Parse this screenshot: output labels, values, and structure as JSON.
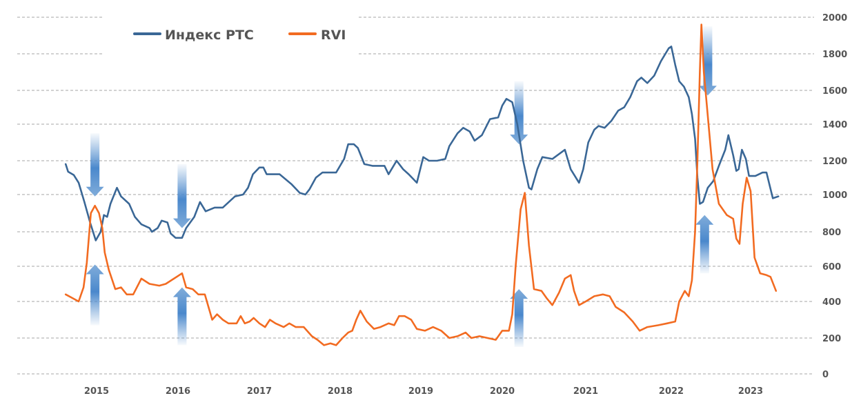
{
  "chart_data": {
    "type": "line",
    "title": "",
    "xlabel": "",
    "ylabel": "",
    "ylim": [
      0,
      2000
    ],
    "xlim": [
      2014.6,
      2023.6
    ],
    "grid": true,
    "y_axis_position": "right",
    "legend_position": "top-left",
    "y_ticks": [
      "2000",
      "1800",
      "1600",
      "1400",
      "1200",
      "1000",
      "800",
      "600",
      "400",
      "200",
      "0"
    ],
    "x_ticks": [
      "2015",
      "2016",
      "2017",
      "2018",
      "2019",
      "2020",
      "2021",
      "2022",
      "2023"
    ],
    "series": [
      {
        "name": "Индекс РТС",
        "color": "#3a6796",
        "points": [
          [
            2014.62,
            1180
          ],
          [
            2014.65,
            1135
          ],
          [
            2014.72,
            1115
          ],
          [
            2014.78,
            1070
          ],
          [
            2014.85,
            960
          ],
          [
            2014.92,
            850
          ],
          [
            2014.99,
            750
          ],
          [
            2015.05,
            800
          ],
          [
            2015.09,
            890
          ],
          [
            2015.13,
            880
          ],
          [
            2015.17,
            950
          ],
          [
            2015.25,
            1040
          ],
          [
            2015.3,
            990
          ],
          [
            2015.4,
            950
          ],
          [
            2015.47,
            880
          ],
          [
            2015.55,
            840
          ],
          [
            2015.65,
            820
          ],
          [
            2015.68,
            800
          ],
          [
            2015.75,
            820
          ],
          [
            2015.8,
            860
          ],
          [
            2015.87,
            850
          ],
          [
            2015.91,
            790
          ],
          [
            2015.97,
            765
          ],
          [
            2016.05,
            765
          ],
          [
            2016.1,
            820
          ],
          [
            2016.2,
            880
          ],
          [
            2016.27,
            960
          ],
          [
            2016.34,
            910
          ],
          [
            2016.45,
            930
          ],
          [
            2016.55,
            930
          ],
          [
            2016.65,
            970
          ],
          [
            2016.7,
            990
          ],
          [
            2016.8,
            1000
          ],
          [
            2016.86,
            1040
          ],
          [
            2016.92,
            1120
          ],
          [
            2017.0,
            1160
          ],
          [
            2017.05,
            1160
          ],
          [
            2017.09,
            1120
          ],
          [
            2017.25,
            1120
          ],
          [
            2017.4,
            1060
          ],
          [
            2017.5,
            1010
          ],
          [
            2017.57,
            1000
          ],
          [
            2017.62,
            1030
          ],
          [
            2017.7,
            1100
          ],
          [
            2017.78,
            1130
          ],
          [
            2017.85,
            1130
          ],
          [
            2017.95,
            1130
          ],
          [
            2018.05,
            1210
          ],
          [
            2018.1,
            1290
          ],
          [
            2018.17,
            1290
          ],
          [
            2018.22,
            1270
          ],
          [
            2018.3,
            1180
          ],
          [
            2018.4,
            1170
          ],
          [
            2018.45,
            1170
          ],
          [
            2018.55,
            1170
          ],
          [
            2018.6,
            1120
          ],
          [
            2018.7,
            1200
          ],
          [
            2018.78,
            1150
          ],
          [
            2018.85,
            1120
          ],
          [
            2018.95,
            1070
          ],
          [
            2019.03,
            1220
          ],
          [
            2019.1,
            1200
          ],
          [
            2019.2,
            1200
          ],
          [
            2019.3,
            1210
          ],
          [
            2019.35,
            1280
          ],
          [
            2019.45,
            1350
          ],
          [
            2019.52,
            1380
          ],
          [
            2019.6,
            1360
          ],
          [
            2019.66,
            1310
          ],
          [
            2019.75,
            1340
          ],
          [
            2019.85,
            1430
          ],
          [
            2019.95,
            1440
          ],
          [
            2020.0,
            1510
          ],
          [
            2020.05,
            1550
          ],
          [
            2020.12,
            1530
          ],
          [
            2020.18,
            1400
          ],
          [
            2020.25,
            1200
          ],
          [
            2020.32,
            1040
          ],
          [
            2020.35,
            1030
          ],
          [
            2020.42,
            1150
          ],
          [
            2020.48,
            1220
          ],
          [
            2020.6,
            1210
          ],
          [
            2020.75,
            1260
          ],
          [
            2020.82,
            1150
          ],
          [
            2020.92,
            1070
          ],
          [
            2020.97,
            1150
          ],
          [
            2021.03,
            1300
          ],
          [
            2021.1,
            1370
          ],
          [
            2021.15,
            1390
          ],
          [
            2021.22,
            1380
          ],
          [
            2021.3,
            1420
          ],
          [
            2021.38,
            1480
          ],
          [
            2021.45,
            1500
          ],
          [
            2021.52,
            1560
          ],
          [
            2021.6,
            1650
          ],
          [
            2021.65,
            1670
          ],
          [
            2021.72,
            1640
          ],
          [
            2021.8,
            1680
          ],
          [
            2021.88,
            1760
          ],
          [
            2021.97,
            1830
          ],
          [
            2022.0,
            1840
          ],
          [
            2022.05,
            1740
          ],
          [
            2022.1,
            1650
          ],
          [
            2022.16,
            1620
          ],
          [
            2022.22,
            1560
          ],
          [
            2022.26,
            1460
          ],
          [
            2022.3,
            1320
          ],
          [
            2022.33,
            1100
          ],
          [
            2022.36,
            950
          ],
          [
            2022.4,
            960
          ],
          [
            2022.46,
            1040
          ],
          [
            2022.53,
            1080
          ],
          [
            2022.6,
            1170
          ],
          [
            2022.68,
            1260
          ],
          [
            2022.72,
            1340
          ],
          [
            2022.78,
            1230
          ],
          [
            2022.82,
            1140
          ],
          [
            2022.85,
            1150
          ],
          [
            2022.89,
            1260
          ],
          [
            2022.94,
            1210
          ],
          [
            2022.98,
            1110
          ],
          [
            2023.06,
            1110
          ],
          [
            2023.15,
            1130
          ],
          [
            2023.2,
            1130
          ],
          [
            2023.28,
            980
          ],
          [
            2023.35,
            990
          ]
        ]
      },
      {
        "name": "RVI",
        "color": "#f26b21",
        "points": [
          [
            2014.62,
            440
          ],
          [
            2014.7,
            420
          ],
          [
            2014.78,
            400
          ],
          [
            2014.84,
            480
          ],
          [
            2014.88,
            620
          ],
          [
            2014.93,
            900
          ],
          [
            2014.98,
            940
          ],
          [
            2015.03,
            900
          ],
          [
            2015.07,
            820
          ],
          [
            2015.1,
            680
          ],
          [
            2015.15,
            580
          ],
          [
            2015.23,
            470
          ],
          [
            2015.3,
            480
          ],
          [
            2015.37,
            440
          ],
          [
            2015.45,
            440
          ],
          [
            2015.55,
            530
          ],
          [
            2015.65,
            500
          ],
          [
            2015.77,
            490
          ],
          [
            2015.85,
            500
          ],
          [
            2015.95,
            530
          ],
          [
            2016.05,
            560
          ],
          [
            2016.1,
            480
          ],
          [
            2016.18,
            470
          ],
          [
            2016.25,
            440
          ],
          [
            2016.33,
            440
          ],
          [
            2016.42,
            300
          ],
          [
            2016.48,
            330
          ],
          [
            2016.55,
            300
          ],
          [
            2016.62,
            280
          ],
          [
            2016.72,
            280
          ],
          [
            2016.77,
            320
          ],
          [
            2016.82,
            280
          ],
          [
            2016.88,
            290
          ],
          [
            2016.93,
            310
          ],
          [
            2017.0,
            280
          ],
          [
            2017.07,
            260
          ],
          [
            2017.13,
            300
          ],
          [
            2017.2,
            280
          ],
          [
            2017.3,
            260
          ],
          [
            2017.37,
            280
          ],
          [
            2017.45,
            260
          ],
          [
            2017.55,
            260
          ],
          [
            2017.65,
            210
          ],
          [
            2017.72,
            190
          ],
          [
            2017.8,
            160
          ],
          [
            2017.88,
            170
          ],
          [
            2017.95,
            160
          ],
          [
            2018.03,
            200
          ],
          [
            2018.1,
            230
          ],
          [
            2018.15,
            240
          ],
          [
            2018.2,
            300
          ],
          [
            2018.25,
            350
          ],
          [
            2018.33,
            290
          ],
          [
            2018.42,
            250
          ],
          [
            2018.5,
            260
          ],
          [
            2018.6,
            280
          ],
          [
            2018.67,
            270
          ],
          [
            2018.73,
            320
          ],
          [
            2018.8,
            320
          ],
          [
            2018.88,
            300
          ],
          [
            2018.95,
            250
          ],
          [
            2019.05,
            240
          ],
          [
            2019.15,
            260
          ],
          [
            2019.25,
            240
          ],
          [
            2019.35,
            200
          ],
          [
            2019.45,
            210
          ],
          [
            2019.55,
            230
          ],
          [
            2019.62,
            200
          ],
          [
            2019.72,
            210
          ],
          [
            2019.82,
            200
          ],
          [
            2019.92,
            190
          ],
          [
            2020.0,
            240
          ],
          [
            2020.08,
            240
          ],
          [
            2020.12,
            330
          ],
          [
            2020.16,
            600
          ],
          [
            2020.22,
            920
          ],
          [
            2020.27,
            1010
          ],
          [
            2020.32,
            720
          ],
          [
            2020.38,
            470
          ],
          [
            2020.47,
            460
          ],
          [
            2020.53,
            420
          ],
          [
            2020.6,
            380
          ],
          [
            2020.68,
            450
          ],
          [
            2020.75,
            530
          ],
          [
            2020.82,
            550
          ],
          [
            2020.86,
            460
          ],
          [
            2020.92,
            380
          ],
          [
            2021.0,
            400
          ],
          [
            2021.1,
            430
          ],
          [
            2021.2,
            440
          ],
          [
            2021.28,
            430
          ],
          [
            2021.35,
            370
          ],
          [
            2021.45,
            340
          ],
          [
            2021.55,
            290
          ],
          [
            2021.63,
            240
          ],
          [
            2021.72,
            260
          ],
          [
            2021.85,
            270
          ],
          [
            2021.95,
            280
          ],
          [
            2022.05,
            290
          ],
          [
            2022.1,
            400
          ],
          [
            2022.17,
            460
          ],
          [
            2022.22,
            430
          ],
          [
            2022.26,
            520
          ],
          [
            2022.3,
            800
          ],
          [
            2022.33,
            1200
          ],
          [
            2022.36,
            1700
          ],
          [
            2022.38,
            1960
          ],
          [
            2022.41,
            1700
          ],
          [
            2022.45,
            1500
          ],
          [
            2022.52,
            1150
          ],
          [
            2022.6,
            950
          ],
          [
            2022.7,
            890
          ],
          [
            2022.78,
            870
          ],
          [
            2022.82,
            760
          ],
          [
            2022.86,
            730
          ],
          [
            2022.9,
            950
          ],
          [
            2022.95,
            1100
          ],
          [
            2023.0,
            1020
          ],
          [
            2023.05,
            650
          ],
          [
            2023.12,
            560
          ],
          [
            2023.2,
            550
          ],
          [
            2023.25,
            540
          ],
          [
            2023.32,
            460
          ]
        ]
      }
    ],
    "annotations": [
      {
        "type": "arrow",
        "direction": "down",
        "x": 2014.98,
        "from": 1350,
        "to": 990
      },
      {
        "type": "arrow",
        "direction": "up",
        "x": 2014.98,
        "from": 270,
        "to": 610
      },
      {
        "type": "arrow",
        "direction": "down",
        "x": 2016.05,
        "from": 1180,
        "to": 820
      },
      {
        "type": "arrow",
        "direction": "up",
        "x": 2016.05,
        "from": 160,
        "to": 480
      },
      {
        "type": "arrow",
        "direction": "down",
        "x": 2020.2,
        "from": 1650,
        "to": 1290
      },
      {
        "type": "arrow",
        "direction": "up",
        "x": 2020.2,
        "from": 150,
        "to": 470
      },
      {
        "type": "arrow",
        "direction": "down",
        "x": 2022.46,
        "from": 1950,
        "to": 1570
      },
      {
        "type": "arrow",
        "direction": "up",
        "x": 2022.42,
        "from": 560,
        "to": 890
      }
    ]
  }
}
